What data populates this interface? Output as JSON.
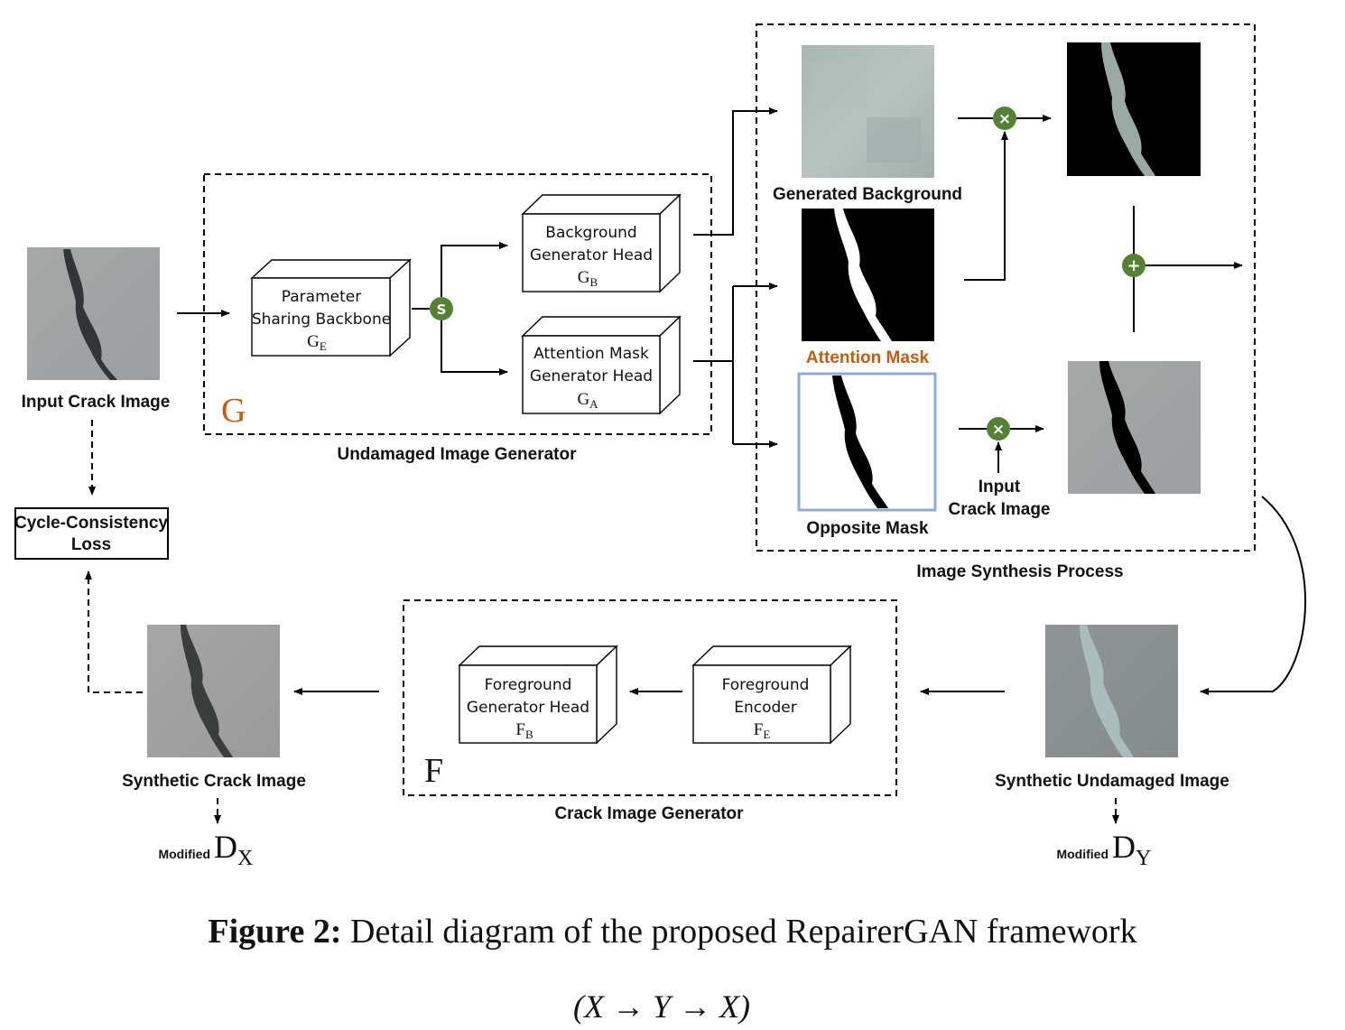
{
  "generator_g": {
    "letter": "G",
    "caption": "Undamaged Image Generator",
    "backbone": {
      "line1": "Parameter",
      "line2": "Sharing Backbone",
      "symbol": "G",
      "sub": "E"
    },
    "split_symbol": "S",
    "bg_head": {
      "line1": "Background",
      "line2": "Generator Head",
      "symbol": "G",
      "sub": "B"
    },
    "attn_head": {
      "line1": "Attention Mask",
      "line2": "Generator Head",
      "symbol": "G",
      "sub": "A"
    }
  },
  "synthesis": {
    "caption": "Image Synthesis Process",
    "generated_background": "Generated Background",
    "attention_mask": "Attention Mask",
    "opposite_mask": "Opposite Mask",
    "input_crack_line1": "Input",
    "input_crack_line2": "Crack Image",
    "multiply_symbol": "×",
    "add_symbol": "+"
  },
  "input_crack_image": "Input Crack Image",
  "cycle_loss": {
    "line1": "Cycle-Consistency",
    "line2": "Loss"
  },
  "generator_f": {
    "letter": "F",
    "caption": "Crack Image Generator",
    "fg_head": {
      "line1": "Foreground",
      "line2": "Generator Head",
      "symbol": "F",
      "sub": "B"
    },
    "fg_encoder": {
      "line1": "Foreground",
      "line2": "Encoder",
      "symbol": "F",
      "sub": "E"
    }
  },
  "synthetic_crack_image": "Synthetic Crack Image",
  "synthetic_undamaged_image": "Synthetic Undamaged Image",
  "disc_x": {
    "prefix": "Modified",
    "symbol": "D",
    "sub": "X"
  },
  "disc_y": {
    "prefix": "Modified",
    "symbol": "D",
    "sub": "Y"
  },
  "figure_caption": {
    "bold": "Figure 2:",
    "rest": " Detail diagram of the proposed RepairerGAN framework"
  },
  "formula": "(X → Y → X)",
  "colors": {
    "accent_orange": "#c55a11",
    "node_green": "#548235",
    "mask_border": "#8eaadb"
  }
}
